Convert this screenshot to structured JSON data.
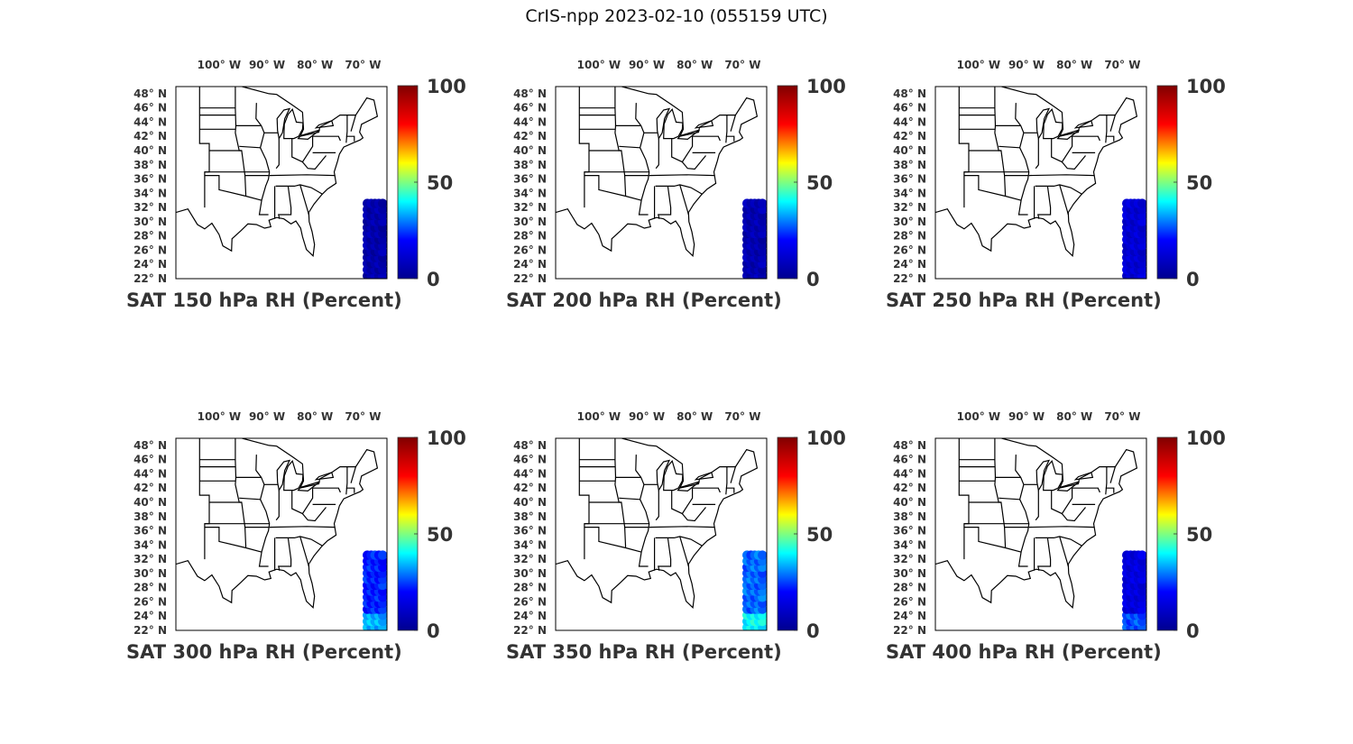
{
  "figure": {
    "title": "CrIS-npp 2023-02-10 (055159 UTC)"
  },
  "colors": {
    "colormap": "jet",
    "jet_stops": [
      "#00008f",
      "#0000ff",
      "#00ffff",
      "#ffff00",
      "#ff0000",
      "#800000"
    ],
    "coastline": "#000000",
    "label_text": "#333333"
  },
  "chart_data": [
    {
      "type": "heatmap",
      "title": "SAT 150 hPa RH (Percent)",
      "lon_ticks": [
        "100° W",
        "90° W",
        "80° W",
        "70° W"
      ],
      "lat_ticks": [
        "48° N",
        "46° N",
        "44° N",
        "42° N",
        "40° N",
        "38° N",
        "36° N",
        "34° N",
        "32° N",
        "30° N",
        "28° N",
        "26° N",
        "24° N",
        "22° N"
      ],
      "colorbar": {
        "ticks": [
          "100",
          "50",
          "0"
        ],
        "range": [
          0,
          100
        ]
      },
      "swath": {
        "lon_range": [
          -69.5,
          -65.5
        ],
        "lat_range": [
          22,
          33
        ],
        "typical_value": 5
      }
    },
    {
      "type": "heatmap",
      "title": "SAT 200 hPa RH (Percent)",
      "lon_ticks": [
        "100° W",
        "90° W",
        "80° W",
        "70° W"
      ],
      "lat_ticks": [
        "48° N",
        "46° N",
        "44° N",
        "42° N",
        "40° N",
        "38° N",
        "36° N",
        "34° N",
        "32° N",
        "30° N",
        "28° N",
        "26° N",
        "24° N",
        "22° N"
      ],
      "colorbar": {
        "ticks": [
          "100",
          "50",
          "0"
        ],
        "range": [
          0,
          100
        ]
      },
      "swath": {
        "lon_range": [
          -69.5,
          -65.5
        ],
        "lat_range": [
          22,
          33
        ],
        "typical_value": 6
      }
    },
    {
      "type": "heatmap",
      "title": "SAT 250 hPa RH (Percent)",
      "lon_ticks": [
        "100° W",
        "90° W",
        "80° W",
        "70° W"
      ],
      "lat_ticks": [
        "48° N",
        "46° N",
        "44° N",
        "42° N",
        "40° N",
        "38° N",
        "36° N",
        "34° N",
        "32° N",
        "30° N",
        "28° N",
        "26° N",
        "24° N",
        "22° N"
      ],
      "colorbar": {
        "ticks": [
          "100",
          "50",
          "0"
        ],
        "range": [
          0,
          100
        ]
      },
      "swath": {
        "lon_range": [
          -69.5,
          -65.5
        ],
        "lat_range": [
          22,
          33
        ],
        "typical_value": 12
      }
    },
    {
      "type": "heatmap",
      "title": "SAT 300 hPa RH (Percent)",
      "lon_ticks": [
        "100° W",
        "90° W",
        "80° W",
        "70° W"
      ],
      "lat_ticks": [
        "48° N",
        "46° N",
        "44° N",
        "42° N",
        "40° N",
        "38° N",
        "36° N",
        "34° N",
        "32° N",
        "30° N",
        "28° N",
        "26° N",
        "24° N",
        "22° N"
      ],
      "colorbar": {
        "ticks": [
          "100",
          "50",
          "0"
        ],
        "range": [
          0,
          100
        ]
      },
      "swath": {
        "lon_range": [
          -69.5,
          -65.5
        ],
        "lat_range": [
          22,
          33
        ],
        "typical_value": 22
      }
    },
    {
      "type": "heatmap",
      "title": "SAT 350 hPa RH (Percent)",
      "lon_ticks": [
        "100° W",
        "90° W",
        "80° W",
        "70° W"
      ],
      "lat_ticks": [
        "48° N",
        "46° N",
        "44° N",
        "42° N",
        "40° N",
        "38° N",
        "36° N",
        "34° N",
        "32° N",
        "30° N",
        "28° N",
        "26° N",
        "24° N",
        "22° N"
      ],
      "colorbar": {
        "ticks": [
          "100",
          "50",
          "0"
        ],
        "range": [
          0,
          100
        ]
      },
      "swath": {
        "lon_range": [
          -69.5,
          -65.5
        ],
        "lat_range": [
          22,
          33
        ],
        "typical_value": 28
      }
    },
    {
      "type": "heatmap",
      "title": "SAT 400 hPa RH (Percent)",
      "lon_ticks": [
        "100° W",
        "90° W",
        "80° W",
        "70° W"
      ],
      "lat_ticks": [
        "48° N",
        "46° N",
        "44° N",
        "42° N",
        "40° N",
        "38° N",
        "36° N",
        "34° N",
        "32° N",
        "30° N",
        "28° N",
        "26° N",
        "24° N",
        "22° N"
      ],
      "colorbar": {
        "ticks": [
          "100",
          "50",
          "0"
        ],
        "range": [
          0,
          100
        ]
      },
      "swath": {
        "lon_range": [
          -69.5,
          -65.5
        ],
        "lat_range": [
          22,
          33
        ],
        "typical_value": 14
      }
    }
  ]
}
